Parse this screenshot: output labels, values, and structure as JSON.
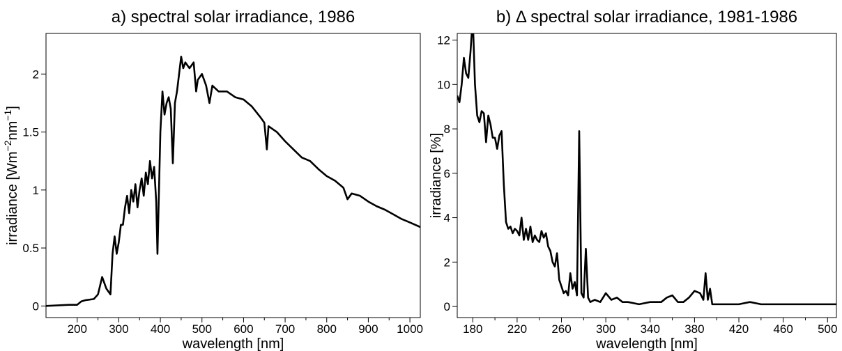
{
  "chart_data": [
    {
      "type": "line",
      "title": "a) spectral solar irradiance, 1986",
      "xlabel": "wavelength [nm]",
      "ylabel": [
        {
          "text": "irradiance [Wm",
          "sup": false
        },
        {
          "text": "−2",
          "sup": true
        },
        {
          "text": "nm",
          "sup": false
        },
        {
          "text": "−1",
          "sup": true
        },
        {
          "text": "]",
          "sup": false
        }
      ],
      "color": "#000000",
      "xlim": [
        125,
        1025
      ],
      "ylim": [
        -0.1,
        2.35
      ],
      "xticks": [
        200,
        300,
        400,
        500,
        600,
        700,
        800,
        900,
        1000
      ],
      "xminorticks": [
        250,
        350,
        450,
        550,
        650,
        750,
        850,
        950
      ],
      "yticks": [
        0,
        0.5,
        1,
        1.5,
        2
      ],
      "x": [
        125,
        180,
        200,
        210,
        220,
        240,
        250,
        260,
        270,
        280,
        285,
        290,
        295,
        300,
        305,
        310,
        315,
        320,
        325,
        330,
        335,
        340,
        345,
        350,
        355,
        360,
        365,
        370,
        375,
        380,
        385,
        390,
        393,
        396,
        400,
        405,
        410,
        415,
        420,
        425,
        430,
        435,
        440,
        445,
        450,
        455,
        460,
        470,
        480,
        486,
        490,
        500,
        510,
        518,
        525,
        540,
        560,
        580,
        600,
        620,
        640,
        650,
        656,
        660,
        680,
        700,
        720,
        740,
        760,
        780,
        800,
        820,
        840,
        850,
        860,
        880,
        900,
        920,
        940,
        960,
        980,
        1000,
        1025
      ],
      "values": [
        0,
        0.01,
        0.01,
        0.04,
        0.05,
        0.06,
        0.1,
        0.25,
        0.15,
        0.1,
        0.45,
        0.6,
        0.45,
        0.55,
        0.7,
        0.7,
        0.85,
        0.95,
        0.8,
        1.0,
        0.9,
        1.05,
        0.85,
        1.0,
        1.1,
        0.95,
        1.15,
        1.05,
        1.25,
        1.1,
        1.2,
        0.9,
        0.45,
        0.9,
        1.5,
        1.85,
        1.65,
        1.75,
        1.8,
        1.7,
        1.23,
        1.75,
        1.85,
        2.0,
        2.15,
        2.05,
        2.1,
        2.05,
        2.1,
        1.85,
        1.95,
        2.0,
        1.9,
        1.75,
        1.9,
        1.85,
        1.85,
        1.8,
        1.78,
        1.72,
        1.63,
        1.58,
        1.35,
        1.55,
        1.5,
        1.42,
        1.35,
        1.28,
        1.25,
        1.18,
        1.12,
        1.08,
        1.02,
        0.92,
        0.97,
        0.95,
        0.9,
        0.86,
        0.83,
        0.79,
        0.75,
        0.72,
        0.68
      ]
    },
    {
      "type": "line",
      "title": "b) Δ spectral solar irradiance, 1981-1986",
      "xlabel": "wavelength [nm]",
      "ylabel": [
        {
          "text": "irradiance [%]",
          "sup": false
        }
      ],
      "color": "#000000",
      "xlim": [
        166,
        508
      ],
      "ylim": [
        -0.5,
        12.3
      ],
      "xticks": [
        180,
        220,
        260,
        300,
        340,
        380,
        420,
        460,
        500
      ],
      "xminorticks": [
        200,
        240,
        280,
        320,
        360,
        400,
        440,
        480
      ],
      "yticks": [
        0,
        2,
        4,
        6,
        8,
        10,
        12
      ],
      "x": [
        166,
        168,
        170,
        172,
        174,
        176,
        178,
        180,
        182,
        184,
        186,
        188,
        190,
        192,
        194,
        196,
        198,
        200,
        202,
        204,
        206,
        208,
        210,
        212,
        214,
        216,
        218,
        220,
        222,
        224,
        226,
        228,
        230,
        232,
        234,
        236,
        238,
        240,
        242,
        244,
        246,
        248,
        250,
        252,
        254,
        256,
        258,
        260,
        262,
        264,
        266,
        268,
        270,
        272,
        274,
        276,
        278,
        280,
        282,
        284,
        286,
        290,
        295,
        300,
        305,
        310,
        315,
        320,
        330,
        340,
        350,
        355,
        360,
        365,
        370,
        375,
        380,
        385,
        388,
        390,
        392,
        394,
        396,
        400,
        420,
        430,
        440,
        460,
        480,
        500,
        508
      ],
      "values": [
        9.5,
        9.2,
        10,
        11.2,
        10.5,
        10.3,
        11.5,
        13,
        10,
        8.6,
        8.3,
        8.8,
        8.7,
        7.4,
        8.6,
        8.2,
        7.6,
        7.6,
        7.1,
        7.7,
        7.9,
        5.5,
        3.8,
        3.5,
        3.6,
        3.3,
        3.5,
        3.4,
        3.2,
        4.0,
        3.0,
        3.5,
        3.0,
        3.6,
        2.9,
        3.2,
        3.0,
        2.9,
        3.4,
        3.1,
        3.3,
        2.7,
        2.5,
        2.0,
        1.8,
        2.4,
        1.2,
        0.9,
        0.6,
        0.7,
        0.5,
        1.5,
        0.8,
        1.1,
        0.5,
        7.9,
        0.6,
        0.4,
        2.6,
        0.4,
        0.2,
        0.3,
        0.2,
        0.6,
        0.3,
        0.4,
        0.2,
        0.2,
        0.1,
        0.2,
        0.2,
        0.4,
        0.5,
        0.2,
        0.2,
        0.4,
        0.7,
        0.6,
        0.3,
        1.5,
        0.3,
        0.8,
        0.1,
        0.1,
        0.1,
        0.2,
        0.1,
        0.1,
        0.1,
        0.1,
        0.1
      ]
    }
  ]
}
